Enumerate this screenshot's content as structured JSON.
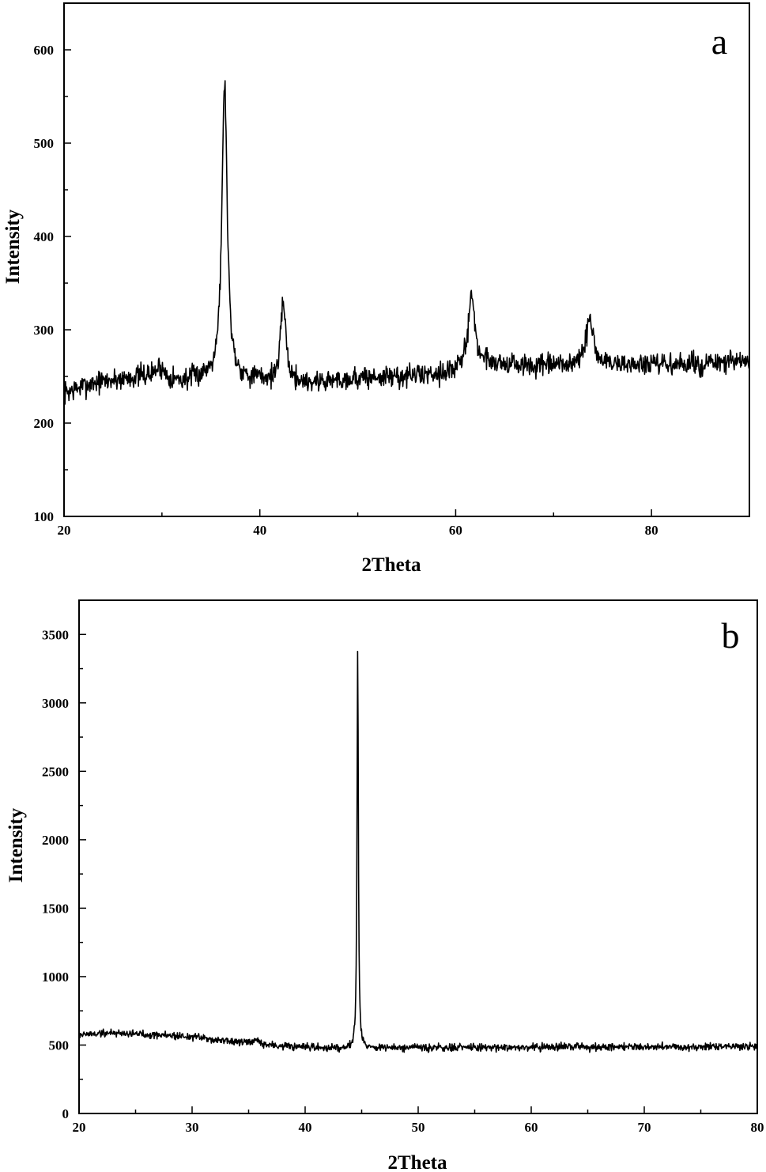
{
  "chart_data": [
    {
      "type": "line",
      "panel_label": "a",
      "xlabel": "2Theta",
      "ylabel": "Intensity",
      "xlim": [
        20,
        90
      ],
      "ylim": [
        100,
        650
      ],
      "x_ticks": [
        20,
        40,
        60,
        80
      ],
      "y_ticks": [
        100,
        200,
        300,
        400,
        500,
        600
      ],
      "x_minor_step": 10,
      "y_minor_step": 50,
      "grid": false,
      "legend": "none",
      "series": [
        {
          "noise_seed": 7,
          "noise_amplitude": 12,
          "baseline": [
            [
              20,
              232
            ],
            [
              23,
              243
            ],
            [
              28,
              250
            ],
            [
              32,
              244
            ],
            [
              35,
              250
            ],
            [
              38,
              247
            ],
            [
              45,
              243
            ],
            [
              50,
              248
            ],
            [
              55,
              250
            ],
            [
              60,
              255
            ],
            [
              63,
              265
            ],
            [
              68,
              260
            ],
            [
              72,
              262
            ],
            [
              75,
              263
            ],
            [
              80,
              262
            ],
            [
              85,
              263
            ],
            [
              90,
              266
            ]
          ],
          "peaks": [
            {
              "x": 29.8,
              "height": 12,
              "width": 0.6
            },
            {
              "x": 36.4,
              "height": 318,
              "width": 0.32
            },
            {
              "x": 42.4,
              "height": 88,
              "width": 0.3
            },
            {
              "x": 61.6,
              "height": 80,
              "width": 0.38
            },
            {
              "x": 73.7,
              "height": 50,
              "width": 0.42
            }
          ]
        }
      ]
    },
    {
      "type": "line",
      "panel_label": "b",
      "xlabel": "2Theta",
      "ylabel": "Intensity",
      "xlim": [
        20,
        80
      ],
      "ylim": [
        0,
        3750
      ],
      "x_ticks": [
        20,
        30,
        40,
        50,
        60,
        70,
        80
      ],
      "y_ticks": [
        0,
        500,
        1000,
        1500,
        2000,
        2500,
        3000,
        3500
      ],
      "x_minor_step": 5,
      "y_minor_step": 250,
      "grid": false,
      "legend": "none",
      "series": [
        {
          "noise_seed": 19,
          "noise_amplitude": 28,
          "baseline": [
            [
              20,
              575
            ],
            [
              23,
              590
            ],
            [
              27,
              575
            ],
            [
              30,
              560
            ],
            [
              33,
              530
            ],
            [
              36,
              505
            ],
            [
              40,
              480
            ],
            [
              44,
              478
            ],
            [
              50,
              478
            ],
            [
              60,
              485
            ],
            [
              70,
              490
            ],
            [
              75,
              485
            ],
            [
              80,
              495
            ]
          ],
          "peaks": [
            {
              "x": 35.7,
              "height": 30,
              "width": 0.2
            },
            {
              "x": 44.65,
              "height": 2920,
              "width": 0.07
            }
          ]
        }
      ]
    }
  ]
}
